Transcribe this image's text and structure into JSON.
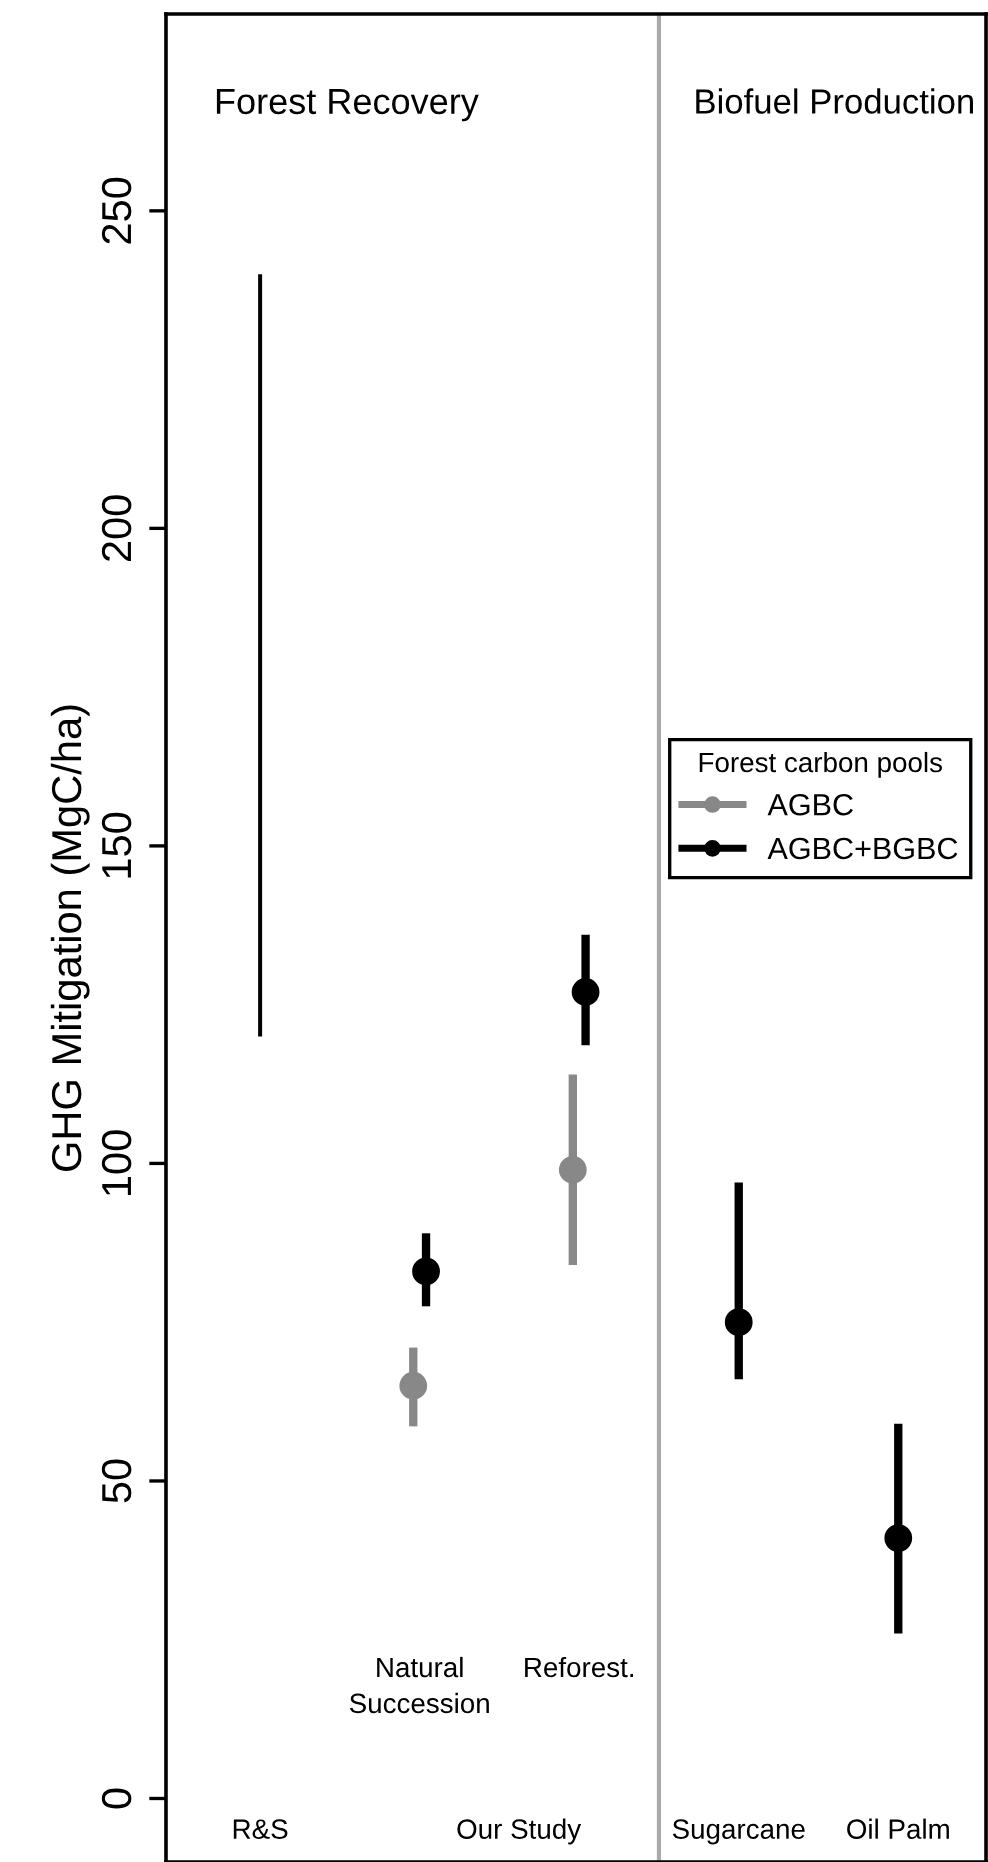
{
  "chart_data": {
    "type": "scatter",
    "ylabel": "GHG Mitigation (MgC/ha)",
    "legend_title": "Forest carbon pools",
    "categories": [
      "R&S",
      "Natural\nSuccession",
      "Reforest.",
      "Sugarcane",
      "Oil Palm"
    ],
    "ylim": [
      -10,
      281
    ],
    "yticks": [
      0,
      50,
      100,
      150,
      200,
      250
    ],
    "grid": false,
    "legend": "right",
    "marker": "circle",
    "series": [
      {
        "type": "bar",
        "base": [
          120,
          null,
          null,
          null,
          null
        ],
        "values": [
          120,
          null,
          null,
          null,
          null
        ],
        "color": "#000000"
      },
      {
        "name": "AGBC",
        "color": "#888888",
        "values": [
          null,
          65,
          99,
          null,
          null
        ],
        "errors": [
          null,
          [
            58.6,
            71
          ],
          [
            84,
            114
          ],
          null,
          null
        ]
      },
      {
        "name": "AGBC+BGBC",
        "color": "#000000",
        "values": [
          null,
          83,
          127,
          75,
          41
        ],
        "errors": [
          null,
          [
            77.5,
            89
          ],
          [
            118.6,
            136
          ],
          [
            66,
            97
          ],
          [
            26,
            59
          ]
        ]
      }
    ],
    "annotations": [
      "Forest Recovery",
      "Biofuel Production",
      "Our Study"
    ]
  }
}
